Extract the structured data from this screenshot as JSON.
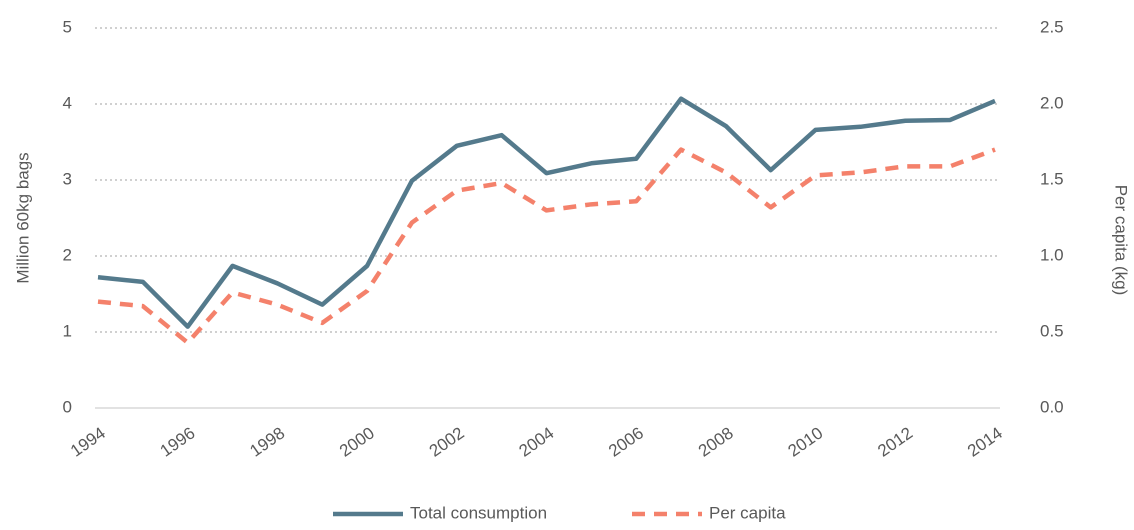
{
  "chart_data": {
    "type": "line",
    "x": [
      1994,
      1995,
      1996,
      1997,
      1998,
      1999,
      2000,
      2001,
      2002,
      2003,
      2004,
      2005,
      2006,
      2007,
      2008,
      2009,
      2010,
      2011,
      2012,
      2013,
      2014
    ],
    "series": [
      {
        "name": "Total consumption",
        "color": "#547a8c",
        "dash": false,
        "axis": "y",
        "values": [
          1.72,
          1.66,
          1.07,
          1.87,
          1.64,
          1.36,
          1.87,
          2.99,
          3.45,
          3.59,
          3.09,
          3.22,
          3.28,
          4.07,
          3.71,
          3.13,
          3.66,
          3.7,
          3.78,
          3.79,
          4.04
        ]
      },
      {
        "name": "Per capita",
        "color": "#f4816b",
        "dash": true,
        "axis": "y2",
        "values": [
          0.7,
          0.67,
          0.43,
          0.76,
          0.68,
          0.56,
          0.77,
          1.22,
          1.43,
          1.48,
          1.3,
          1.34,
          1.36,
          1.7,
          1.55,
          1.32,
          1.53,
          1.55,
          1.59,
          1.59,
          1.7
        ]
      }
    ],
    "xlim": [
      1994,
      2014
    ],
    "xticks": [
      1994,
      1996,
      1998,
      2000,
      2002,
      2004,
      2006,
      2008,
      2010,
      2012,
      2014
    ],
    "ylabel": "Million 60kg bags",
    "ylim": [
      0,
      5
    ],
    "yticks": [
      0,
      1,
      2,
      3,
      4,
      5
    ],
    "y2label": "Per capita (kg)",
    "y2lim": [
      0,
      2.5
    ],
    "y2ticks": [
      {
        "value": 0,
        "label": "0.0"
      },
      {
        "value": 0.5,
        "label": "0.5"
      },
      {
        "value": 1,
        "label": "1.0"
      },
      {
        "value": 1.5,
        "label": "1.5"
      },
      {
        "value": 2,
        "label": "2.0"
      },
      {
        "value": 2.5,
        "label": "2.5"
      }
    ],
    "grid": true,
    "legend": "bottom"
  }
}
